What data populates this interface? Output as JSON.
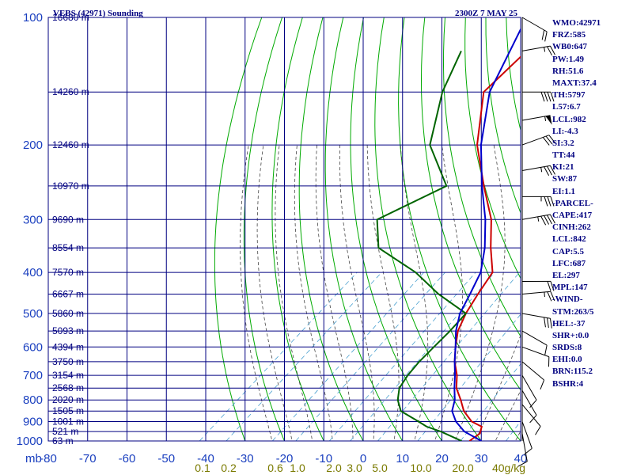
{
  "header": {
    "station": "VEBS (42971) Sounding",
    "time": "2300Z  7 MAY 25"
  },
  "indices": [
    "WMO:42971",
    "FRZ:585",
    "WB0:647",
    "PW:1.49",
    "RH:51.6",
    "MAXT:37.4",
    "TH:5797",
    "L57:6.7",
    "LCL:982",
    "LI:-4.3",
    "SI:3.2",
    "TT:44",
    "KI:21",
    "SW:87",
    "EI:1.1",
    "-PARCEL-",
    "CAPE:417",
    "CINH:262",
    "LCL:842",
    "CAP:5.5",
    "LFC:687",
    "EL:297",
    "MPL:147",
    "-WIND-",
    "STM:263/5",
    "HEL:-37",
    "SHR+:0.0",
    "SRDS:8",
    "EHI:0.0",
    "BRN:115.2",
    "BSHR:4"
  ],
  "chart_data": {
    "type": "line",
    "title": "VEBS (42971) Sounding",
    "subtitle": "2300Z  7 MAY 25",
    "xlabel": "",
    "ylabel": "mb",
    "pressure_axis": {
      "scale": "log",
      "range_mb": [
        100,
        1000
      ],
      "tick_labels": [
        "100",
        "200",
        "300",
        "400",
        "500",
        "600",
        "700",
        "800",
        "900",
        "1000"
      ]
    },
    "temperature_axis": {
      "range_c": [
        -80,
        40
      ],
      "tick_labels": [
        "-80",
        "-70",
        "-60",
        "-50",
        "-40",
        "-30",
        "-20",
        "-10",
        "0",
        "10",
        "20",
        "30",
        "40"
      ]
    },
    "height_labels": [
      {
        "p": 100,
        "label": "16680 m"
      },
      {
        "p": 150,
        "label": "14260 m"
      },
      {
        "p": 200,
        "label": "12460 m"
      },
      {
        "p": 250,
        "label": "10970 m"
      },
      {
        "p": 300,
        "label": "9690 m"
      },
      {
        "p": 350,
        "label": "8554 m"
      },
      {
        "p": 400,
        "label": "7570 m"
      },
      {
        "p": 450,
        "label": "6667 m"
      },
      {
        "p": 500,
        "label": "5860 m"
      },
      {
        "p": 550,
        "label": "5093 m"
      },
      {
        "p": 600,
        "label": "4394 m"
      },
      {
        "p": 650,
        "label": "3750 m"
      },
      {
        "p": 700,
        "label": "3154 m"
      },
      {
        "p": 750,
        "label": "2568 m"
      },
      {
        "p": 800,
        "label": "2020 m"
      },
      {
        "p": 850,
        "label": "1505 m"
      },
      {
        "p": 900,
        "label": "1001 m"
      },
      {
        "p": 950,
        "label": "521 m"
      },
      {
        "p": 1000,
        "label": "63 m"
      }
    ],
    "mixing_ratio_labels": [
      "0.1",
      "0.2",
      "0.6",
      "1.0",
      "2.0",
      "3.0",
      "5.0",
      "10.0",
      "20.0",
      "40g/kg"
    ],
    "series": [
      {
        "key": "temperature",
        "color": "#cc0000",
        "points": [
          [
            1000,
            27
          ],
          [
            960,
            27.5
          ],
          [
            925,
            26
          ],
          [
            900,
            22
          ],
          [
            850,
            17
          ],
          [
            800,
            13
          ],
          [
            750,
            8.5
          ],
          [
            700,
            5
          ],
          [
            650,
            0.5
          ],
          [
            600,
            -3.5
          ],
          [
            550,
            -7.5
          ],
          [
            500,
            -10.5
          ],
          [
            450,
            -13
          ],
          [
            400,
            -15.5
          ],
          [
            350,
            -23
          ],
          [
            300,
            -31
          ],
          [
            250,
            -42.5
          ],
          [
            200,
            -56
          ],
          [
            150,
            -69.5
          ],
          [
            100,
            -71
          ]
        ]
      },
      {
        "key": "dewpoint",
        "color": "#006400",
        "points": [
          [
            1000,
            25
          ],
          [
            950,
            17
          ],
          [
            925,
            12
          ],
          [
            900,
            8.5
          ],
          [
            850,
            1
          ],
          [
            800,
            -3
          ],
          [
            750,
            -6
          ],
          [
            700,
            -7.5
          ],
          [
            650,
            -8.5
          ],
          [
            600,
            -9
          ],
          [
            550,
            -9.5
          ],
          [
            500,
            -10.5
          ],
          [
            450,
            -23
          ],
          [
            400,
            -35
          ],
          [
            350,
            -51.5
          ],
          [
            300,
            -60
          ],
          [
            250,
            -52
          ],
          [
            200,
            -68
          ],
          [
            150,
            -80
          ],
          [
            120,
            -87
          ]
        ]
      },
      {
        "key": "parcel",
        "color": "#0000cc",
        "points": [
          [
            1000,
            30
          ],
          [
            950,
            23
          ],
          [
            900,
            18
          ],
          [
            850,
            14
          ],
          [
            800,
            11.5
          ],
          [
            750,
            8
          ],
          [
            700,
            4.5
          ],
          [
            650,
            0.5
          ],
          [
            600,
            -3.5
          ],
          [
            550,
            -8
          ],
          [
            500,
            -12
          ],
          [
            450,
            -15
          ],
          [
            400,
            -18.5
          ],
          [
            350,
            -24.5
          ],
          [
            300,
            -32.5
          ],
          [
            250,
            -43
          ],
          [
            200,
            -55
          ],
          [
            150,
            -68
          ],
          [
            100,
            -80
          ]
        ]
      }
    ],
    "wind_barbs": [
      {
        "p": 100,
        "dir": 300,
        "spd": 20
      },
      {
        "p": 120,
        "dir": 260,
        "spd": 25
      },
      {
        "p": 150,
        "dir": 270,
        "spd": 40
      },
      {
        "p": 175,
        "dir": 260,
        "spd": 55
      },
      {
        "p": 200,
        "dir": 250,
        "spd": 30
      },
      {
        "p": 230,
        "dir": 260,
        "spd": 35
      },
      {
        "p": 265,
        "dir": 270,
        "spd": 35
      },
      {
        "p": 300,
        "dir": 260,
        "spd": 45
      },
      {
        "p": 420,
        "dir": 270,
        "spd": 20
      },
      {
        "p": 450,
        "dir": 265,
        "spd": 25
      },
      {
        "p": 500,
        "dir": 280,
        "spd": 30
      },
      {
        "p": 550,
        "dir": 300,
        "spd": 10
      },
      {
        "p": 600,
        "dir": 290,
        "spd": 10
      },
      {
        "p": 650,
        "dir": 310,
        "spd": 10
      },
      {
        "p": 700,
        "dir": 330,
        "spd": 10
      },
      {
        "p": 760,
        "dir": 330,
        "spd": 10
      },
      {
        "p": 820,
        "dir": 320,
        "spd": 10
      },
      {
        "p": 900,
        "dir": 340,
        "spd": 10
      },
      {
        "p": 960,
        "dir": 350,
        "spd": 10
      }
    ],
    "colors": {
      "grid": "#000080",
      "dry_adiabat": "#00aa00",
      "moist_adiabat": "#444444",
      "mixing_ratio": "#4aa0d0"
    }
  }
}
